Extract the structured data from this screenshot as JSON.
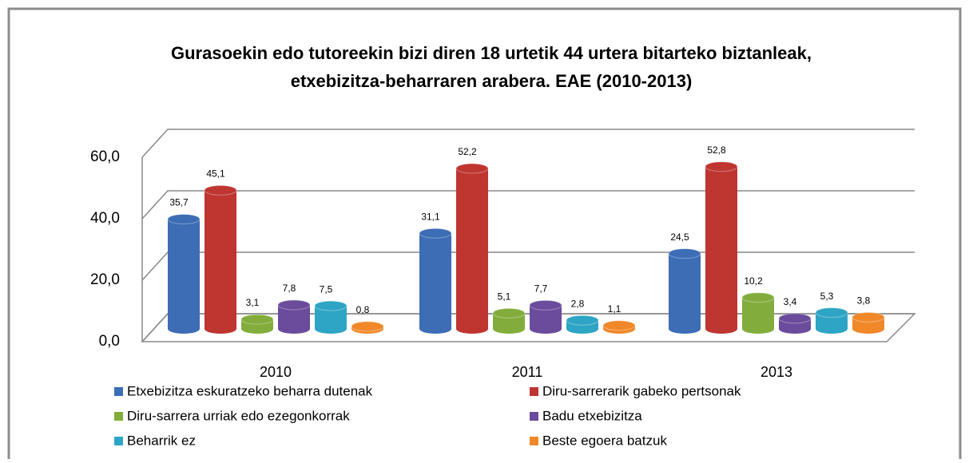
{
  "chart_data": {
    "type": "bar",
    "title": [
      "Gurasoekin edo tutoreekin bizi diren 18 urtetik 44 urtera bitarteko biztanleak,",
      "etxebizitza-beharraren arabera. EAE (2010-2013)"
    ],
    "categories": [
      "2010",
      "2011",
      "2013"
    ],
    "series": [
      {
        "name": "Etxebizitza eskuratzeko beharra dutenak",
        "color": "#3c6db5",
        "values": [
          35.7,
          31.1,
          24.5
        ],
        "value_labels": [
          "35,7",
          "31,1",
          "24,5"
        ]
      },
      {
        "name": "Diru-sarrerarik gabeko pertsonak",
        "color": "#bf3530",
        "values": [
          45.1,
          52.2,
          52.8
        ],
        "value_labels": [
          "45,1",
          "52,2",
          "52,8"
        ]
      },
      {
        "name": "Diru-sarrera urriak edo ezegonkorrak",
        "color": "#82ad3c",
        "values": [
          3.1,
          5.1,
          10.2
        ],
        "value_labels": [
          "3,1",
          "5,1",
          "10,2"
        ]
      },
      {
        "name": "Badu etxebizitza",
        "color": "#6a4b9c",
        "values": [
          7.8,
          7.7,
          3.4
        ],
        "value_labels": [
          "7,8",
          "7,7",
          "3,4"
        ]
      },
      {
        "name": "Beharrik ez",
        "color": "#2ea5c4",
        "values": [
          7.5,
          2.8,
          5.3
        ],
        "value_labels": [
          "7,5",
          "2,8",
          "5,3"
        ]
      },
      {
        "name": "Beste egoera batzuk",
        "color": "#f0882a",
        "values": [
          0.8,
          1.1,
          3.8
        ],
        "value_labels": [
          "0,8",
          "1,1",
          "3,8"
        ]
      }
    ],
    "ylim": [
      0,
      60
    ],
    "yticks": [
      {
        "value": 0,
        "label": "0,0"
      },
      {
        "value": 20,
        "label": "20,0"
      },
      {
        "value": 40,
        "label": "40,0"
      },
      {
        "value": 60,
        "label": "60,0"
      }
    ],
    "grid": true
  }
}
